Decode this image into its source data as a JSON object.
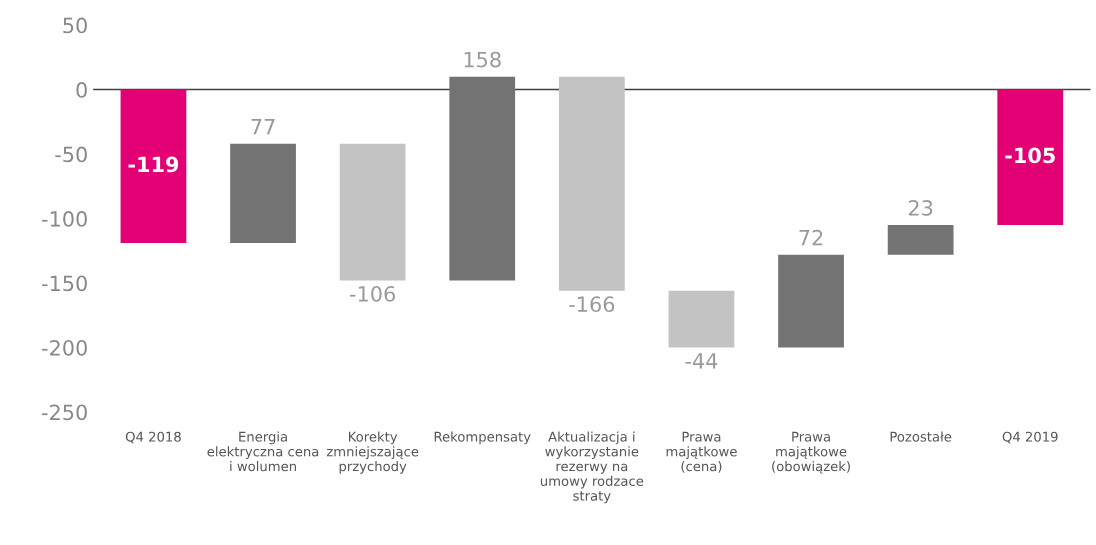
{
  "chart_data": {
    "type": "bar",
    "categories": [
      "Q4 2018",
      "Energia\nelektryczna cena\ni wolumen",
      "Korekty\nzmniejszające\nprzychody",
      "Rekompensaty",
      "Aktualizacja i\nwykorzystanie\nrezerwy na\numowy rodzace\nstraty",
      "Prawa\nmajątkowe\n(cena)",
      "Prawa\nmajątkowe\n(obowiązek)",
      "Pozostałe",
      "Q4 2019"
    ],
    "values": [
      -119,
      77,
      -106,
      158,
      -166,
      -44,
      72,
      23,
      -105
    ],
    "base": [
      0,
      -119,
      -42,
      -148,
      10,
      -156,
      -200,
      -128,
      0
    ],
    "colors": [
      "#e20074",
      "#737373",
      "#c3c3c3",
      "#737373",
      "#c3c3c3",
      "#c3c3c3",
      "#737373",
      "#737373",
      "#e20074"
    ],
    "data_labels": true,
    "ylim": [
      -250,
      50
    ],
    "yticks": [
      -250,
      -200,
      -150,
      -100,
      -50,
      0,
      50
    ],
    "ref_lines": [
      {
        "axis": "y",
        "value": 0,
        "color": "#404040"
      }
    ],
    "grid": false,
    "legend": false
  }
}
